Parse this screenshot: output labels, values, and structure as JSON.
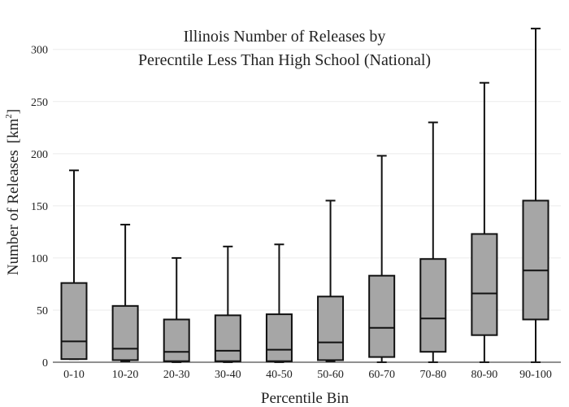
{
  "chart_data": {
    "type": "box",
    "title_lines": [
      "Illinois Number of Releases by",
      "Perecntile Less Than High School (National)"
    ],
    "xlabel": "Percentile Bin",
    "ylabel": "Number of Releases",
    "ylabel_unit_base": "[km",
    "ylabel_unit_sup": "2",
    "ylabel_unit_close": "]",
    "ylim": [
      0,
      325
    ],
    "yticks": [
      0,
      50,
      100,
      150,
      200,
      250,
      300
    ],
    "grid": true,
    "box_fill": "#a6a6a6",
    "line_color": "#111111",
    "categories": [
      "0-10",
      "10-20",
      "20-30",
      "30-40",
      "40-50",
      "50-60",
      "60-70",
      "70-80",
      "80-90",
      "90-100"
    ],
    "boxes": [
      {
        "min": 3,
        "q1": 3,
        "median": 20,
        "q3": 76,
        "max": 184
      },
      {
        "min": 1,
        "q1": 2,
        "median": 13,
        "q3": 54,
        "max": 132
      },
      {
        "min": 0,
        "q1": 1,
        "median": 10,
        "q3": 41,
        "max": 100
      },
      {
        "min": 0,
        "q1": 1,
        "median": 11,
        "q3": 45,
        "max": 111
      },
      {
        "min": 0,
        "q1": 1,
        "median": 12,
        "q3": 46,
        "max": 113
      },
      {
        "min": 1,
        "q1": 2,
        "median": 19,
        "q3": 63,
        "max": 155
      },
      {
        "min": 0,
        "q1": 5,
        "median": 33,
        "q3": 83,
        "max": 198
      },
      {
        "min": 0,
        "q1": 10,
        "median": 42,
        "q3": 99,
        "max": 230
      },
      {
        "min": 0,
        "q1": 26,
        "median": 66,
        "q3": 123,
        "max": 268
      },
      {
        "min": 0,
        "q1": 41,
        "median": 88,
        "q3": 155,
        "max": 320
      }
    ]
  }
}
